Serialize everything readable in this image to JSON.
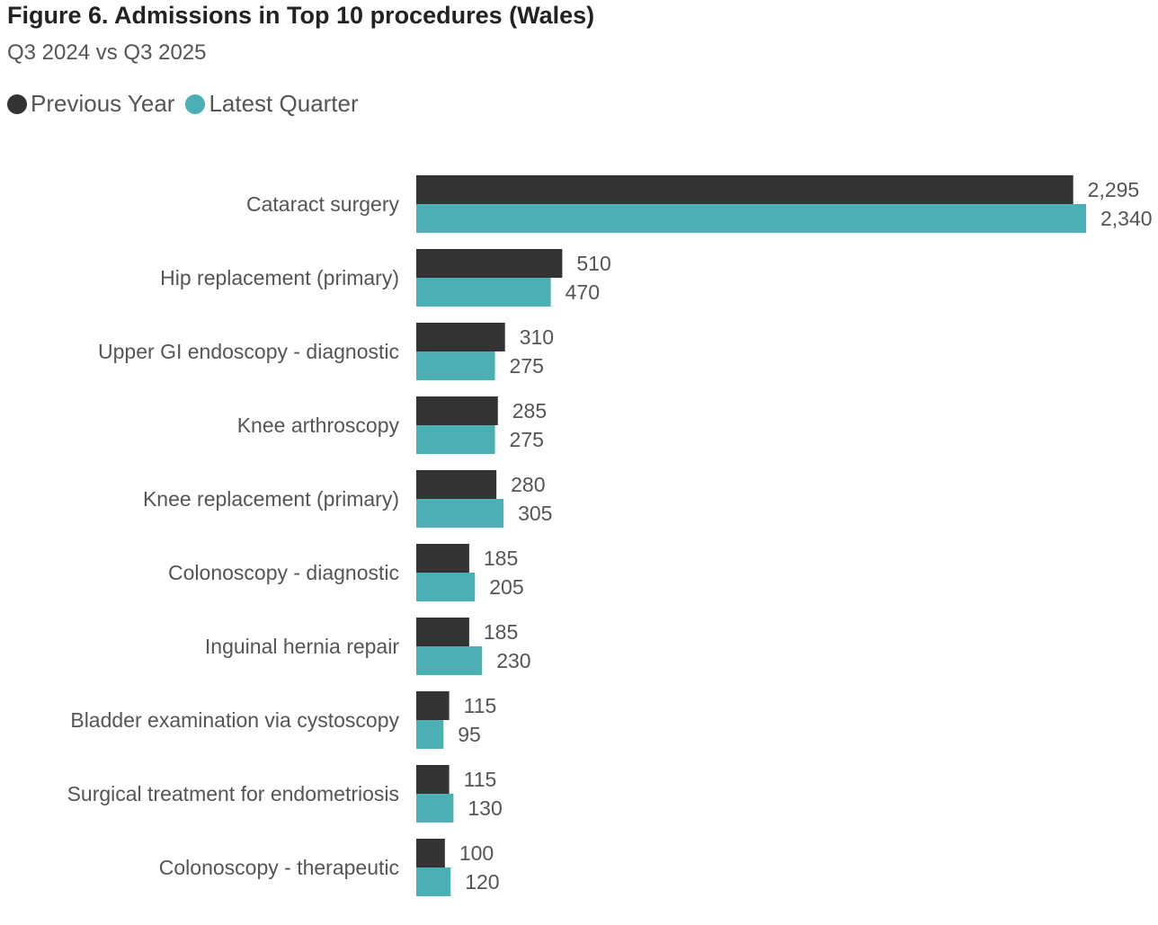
{
  "title": "Figure 6. Admissions in Top 10 procedures (Wales)",
  "subtitle": "Q3 2024 vs Q3 2025",
  "legend": [
    {
      "label": "Previous Year",
      "color": "#333333"
    },
    {
      "label": "Latest Quarter",
      "color": "#4bafb4"
    }
  ],
  "chart_data": {
    "type": "bar",
    "orientation": "horizontal",
    "categories": [
      "Cataract surgery",
      "Hip replacement (primary)",
      "Upper GI endoscopy - diagnostic",
      "Knee arthroscopy",
      "Knee replacement (primary)",
      "Colonoscopy - diagnostic",
      "Inguinal hernia repair",
      "Bladder examination via cystoscopy",
      "Surgical treatment for endometriosis",
      "Colonoscopy - therapeutic"
    ],
    "series": [
      {
        "name": "Previous Year",
        "color": "#333333",
        "values": [
          2295,
          510,
          310,
          285,
          280,
          185,
          185,
          115,
          115,
          100
        ],
        "labels": [
          "2,295",
          "510",
          "310",
          "285",
          "280",
          "185",
          "185",
          "115",
          "115",
          "100"
        ]
      },
      {
        "name": "Latest Quarter",
        "color": "#4bafb4",
        "values": [
          2340,
          470,
          275,
          275,
          305,
          205,
          230,
          95,
          130,
          120
        ],
        "labels": [
          "2,340",
          "470",
          "275",
          "275",
          "305",
          "205",
          "230",
          "95",
          "130",
          "120"
        ]
      }
    ],
    "xlim": [
      0,
      2340
    ],
    "grid": false,
    "legend_position": "top-left"
  }
}
